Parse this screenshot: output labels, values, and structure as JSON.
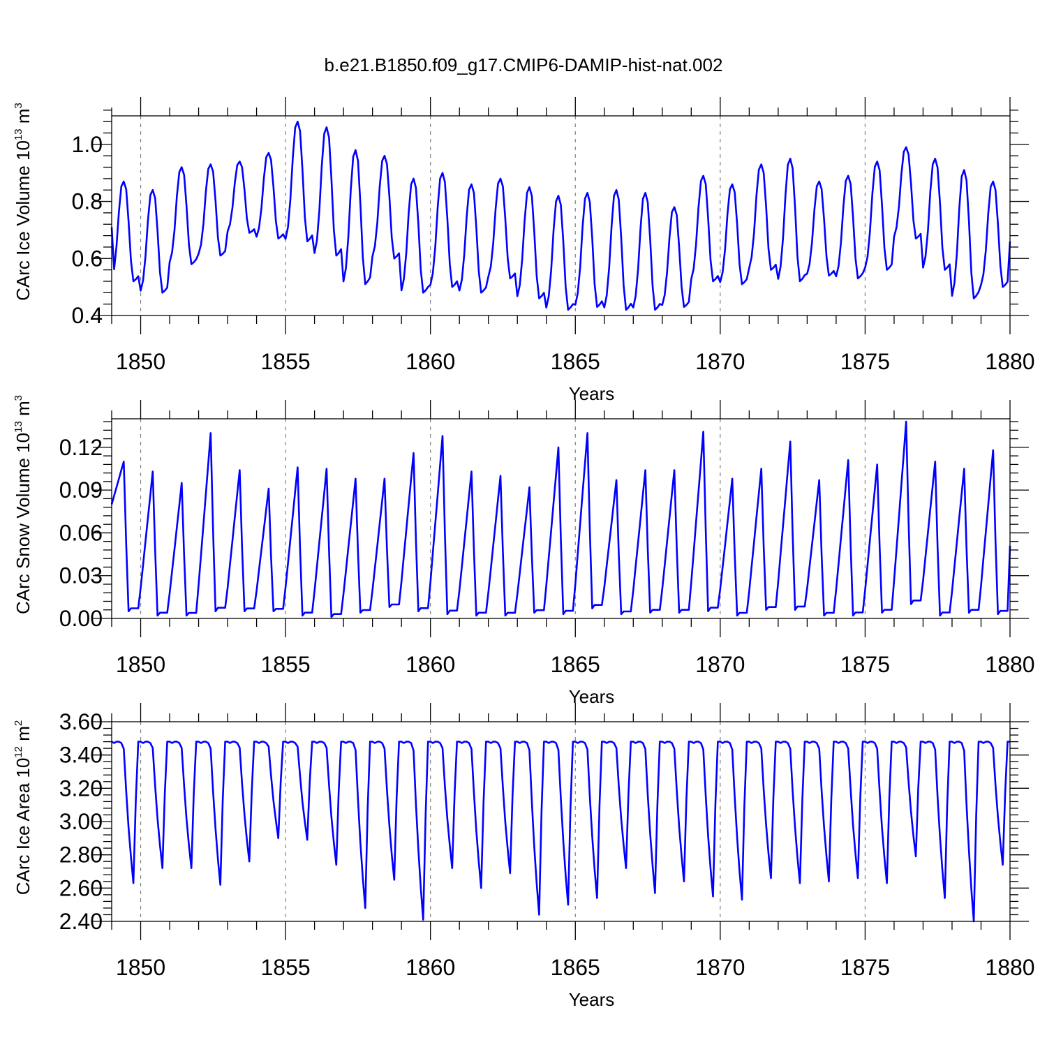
{
  "title": "b.e21.B1850.f09_g17.CMIP6-DAMIP-hist-nat.002",
  "colors": {
    "line": "#0000ff",
    "axes": "#000000",
    "grid": "#808080"
  },
  "chart_data": [
    {
      "type": "line",
      "ylabel": {
        "text": "CArc Ice Volume 10",
        "exp": "13",
        "unit": " m",
        "unit_exp": "3"
      },
      "xlabel": "Years",
      "xlim": [
        1849.0,
        1880.0
      ],
      "ylim": [
        0.4,
        1.1
      ],
      "x_ticks": [
        1850,
        1855,
        1860,
        1865,
        1870,
        1875,
        1880
      ],
      "x_tick_labels": [
        "1850",
        "1855",
        "1860",
        "1865",
        "1870",
        "1875",
        "1880"
      ],
      "y_ticks": [
        0.4,
        0.6,
        0.8,
        1.0
      ],
      "y_tick_labels": [
        "0.4",
        "0.6",
        "0.8",
        "1.0"
      ],
      "y_minor_step": 0.04,
      "grid": "vertical dashed lines at major x ticks",
      "series": [
        {
          "mode": "seasonal",
          "start": 1849.0,
          "shape": [
            0.02,
            0.12,
            0.35,
            0.7,
            0.95,
            1.0,
            0.92,
            0.6,
            0.2,
            0.0,
            0.02,
            0.05
          ],
          "annual": [
            [
              0.52,
              0.87
            ],
            [
              0.48,
              0.84
            ],
            [
              0.58,
              0.92
            ],
            [
              0.61,
              0.93
            ],
            [
              0.69,
              0.94
            ],
            [
              0.67,
              0.97
            ],
            [
              0.66,
              1.08
            ],
            [
              0.61,
              1.06
            ],
            [
              0.51,
              0.98
            ],
            [
              0.6,
              0.96
            ],
            [
              0.48,
              0.88
            ],
            [
              0.5,
              0.9
            ],
            [
              0.48,
              0.86
            ],
            [
              0.53,
              0.88
            ],
            [
              0.46,
              0.85
            ],
            [
              0.42,
              0.82
            ],
            [
              0.43,
              0.83
            ],
            [
              0.42,
              0.84
            ],
            [
              0.42,
              0.83
            ],
            [
              0.43,
              0.78
            ],
            [
              0.52,
              0.89
            ],
            [
              0.51,
              0.86
            ],
            [
              0.56,
              0.93
            ],
            [
              0.52,
              0.95
            ],
            [
              0.54,
              0.87
            ],
            [
              0.53,
              0.89
            ],
            [
              0.56,
              0.94
            ],
            [
              0.67,
              0.99
            ],
            [
              0.56,
              0.95
            ],
            [
              0.46,
              0.91
            ],
            [
              0.5,
              0.87
            ]
          ],
          "end_value": 0.66
        }
      ]
    },
    {
      "type": "line",
      "ylabel": {
        "text": "CArc Snow Volume 10",
        "exp": "13",
        "unit": " m",
        "unit_exp": "3"
      },
      "xlabel": "Years",
      "xlim": [
        1849.0,
        1880.0
      ],
      "ylim": [
        0.0,
        0.14
      ],
      "x_ticks": [
        1850,
        1855,
        1860,
        1865,
        1870,
        1875,
        1880
      ],
      "x_tick_labels": [
        "1850",
        "1855",
        "1860",
        "1865",
        "1870",
        "1875",
        "1880"
      ],
      "y_ticks": [
        0.0,
        0.03,
        0.06,
        0.09,
        0.12
      ],
      "y_tick_labels": [
        "0.00",
        "0.03",
        "0.06",
        "0.09",
        "0.12"
      ],
      "y_minor_step": 0.006,
      "grid": "vertical dashed lines at major x ticks",
      "series": [
        {
          "mode": "sawtooth",
          "start": 1849.0,
          "first_value": 0.074,
          "annual": [
            [
              0.11,
              0.005
            ],
            [
              0.103,
              0.002
            ],
            [
              0.095,
              0.002
            ],
            [
              0.13,
              0.005
            ],
            [
              0.104,
              0.005
            ],
            [
              0.091,
              0.005
            ],
            [
              0.106,
              0.002
            ],
            [
              0.105,
              0.001
            ],
            [
              0.098,
              0.004
            ],
            [
              0.098,
              0.008
            ],
            [
              0.116,
              0.005
            ],
            [
              0.128,
              0.003
            ],
            [
              0.103,
              0.002
            ],
            [
              0.1,
              0.002
            ],
            [
              0.092,
              0.004
            ],
            [
              0.12,
              0.003
            ],
            [
              0.13,
              0.007
            ],
            [
              0.097,
              0.003
            ],
            [
              0.104,
              0.004
            ],
            [
              0.104,
              0.004
            ],
            [
              0.131,
              0.005
            ],
            [
              0.098,
              0.002
            ],
            [
              0.105,
              0.006
            ],
            [
              0.124,
              0.006
            ],
            [
              0.097,
              0.002
            ],
            [
              0.111,
              0.002
            ],
            [
              0.108,
              0.004
            ],
            [
              0.138,
              0.01
            ],
            [
              0.11,
              0.002
            ],
            [
              0.105,
              0.004
            ],
            [
              0.118,
              0.003
            ]
          ],
          "end_value": 0.051
        }
      ]
    },
    {
      "type": "line",
      "ylabel": {
        "text": "CArc Ice Area 10",
        "exp": "12",
        "unit": " m",
        "unit_exp": "2"
      },
      "xlabel": "Years",
      "xlim": [
        1849.0,
        1880.0
      ],
      "ylim": [
        2.4,
        3.6
      ],
      "x_ticks": [
        1850,
        1855,
        1860,
        1865,
        1870,
        1875,
        1880
      ],
      "x_tick_labels": [
        "1850",
        "1855",
        "1860",
        "1865",
        "1870",
        "1875",
        "1880"
      ],
      "y_ticks": [
        2.4,
        2.6,
        2.8,
        3.0,
        3.2,
        3.4,
        3.6
      ],
      "y_tick_labels": [
        "2.40",
        "2.60",
        "2.80",
        "3.00",
        "3.20",
        "3.40",
        "3.60"
      ],
      "y_minor_step": 0.04,
      "grid": "vertical dashed lines at major x ticks",
      "series": [
        {
          "mode": "plateau",
          "start": 1849.0,
          "top": 3.48,
          "shape": [
            0.0,
            0.0,
            0.0,
            0.0,
            0.0,
            0.05,
            0.35,
            0.6,
            0.82,
            1.0,
            0.4,
            0.0
          ],
          "annual_min": [
            2.63,
            2.72,
            2.72,
            2.62,
            2.76,
            2.9,
            2.89,
            2.74,
            2.48,
            2.65,
            2.41,
            2.72,
            2.6,
            2.69,
            2.44,
            2.5,
            2.54,
            2.72,
            2.57,
            2.64,
            2.55,
            2.53,
            2.66,
            2.63,
            2.64,
            2.66,
            2.63,
            2.79,
            2.54,
            2.4,
            2.74
          ],
          "end_value": 3.48
        }
      ]
    }
  ]
}
